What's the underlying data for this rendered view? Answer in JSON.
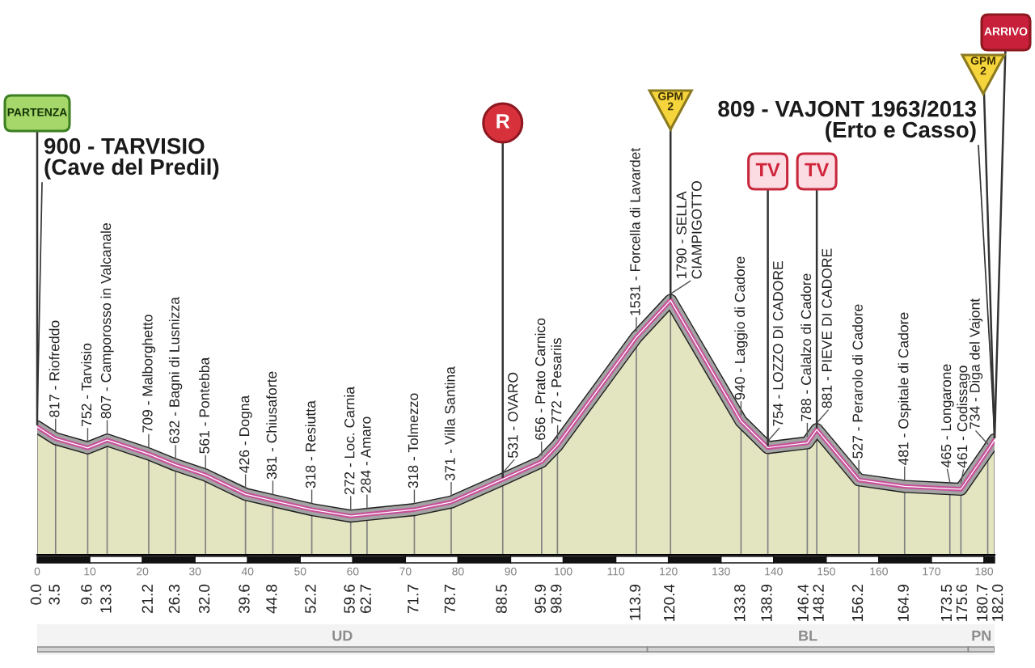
{
  "chart_data": {
    "type": "area",
    "x": [
      0,
      3.5,
      9.6,
      13.3,
      21.2,
      26.3,
      32,
      39.6,
      44.8,
      52.2,
      59.6,
      62.7,
      71.7,
      78.7,
      88.5,
      95.9,
      98.9,
      113.9,
      120.4,
      133.8,
      138.9,
      146.4,
      148.2,
      156.2,
      164.9,
      173.5,
      175.6,
      180.7,
      182
    ],
    "values": [
      900,
      817,
      752,
      807,
      709,
      632,
      561,
      426,
      381,
      318,
      272,
      284,
      318,
      371,
      531,
      656,
      772,
      1531,
      1790,
      940,
      754,
      788,
      881,
      527,
      481,
      465,
      461,
      734,
      809
    ],
    "color": "#eef0c8",
    "value_labels": [
      "900 - TARVISIO\n(Cave del Predil)",
      "817 - Riofreddo",
      "752 - Tarvisio",
      "807 - Camporosso in Valcanale",
      "709 - Malborghetto",
      "632 - Bagni di Lusnizza",
      "561 - Pontebba",
      "426 - Dogna",
      "381 - Chiusaforte",
      "318 - Resiutta",
      "272 - Loc. Carnia",
      "284 - Amaro",
      "318 - Tolmezzo",
      "371 - Villa Santina",
      "531 - OVARO",
      "656 - Prato Carnico",
      "772 - Pesariis",
      "1531 - Forcella di Lavardet",
      "1790 - SELLA\nCIAMPIGOTTO",
      "940 - Laggio di Cadore",
      "754 - LOZZO DI CADORE",
      "788 - Calalzo di Cadore",
      "881 - PIEVE DI CADORE",
      "527 - Perarolo di Cadore",
      "481 - Ospitale di Cadore",
      "465 - Longarone",
      "461 - Codissago",
      "734 - Diga del Vajont",
      "809 - VAJONT 1963/2013\n(Erto e Casso)"
    ],
    "xlim": [
      0,
      182
    ],
    "xticks": [
      {
        "value": 0,
        "label": "0.0"
      },
      3.5,
      9.6,
      13.3,
      21.2,
      26.3,
      {
        "value": 32,
        "label": "32.0"
      },
      39.6,
      44.8,
      52.2,
      59.6,
      62.7,
      71.7,
      78.7,
      88.5,
      95.9,
      98.9,
      113.9,
      120.4,
      133.8,
      138.9,
      146.4,
      148.2,
      156.2,
      164.9,
      173.5,
      175.6,
      180.7,
      {
        "value": 182,
        "label": "182.0"
      }
    ],
    "x2lim": [
      0,
      182
    ],
    "x2ticks": [
      0,
      10,
      20,
      30,
      40,
      50,
      60,
      70,
      80,
      90,
      100,
      110,
      120,
      130,
      140,
      150,
      160,
      170,
      180
    ],
    "tick_labels": "x",
    "grid": "x",
    "annotations": [
      {
        "text": "PARTENZA",
        "x": 0,
        "y": 900
      },
      {
        "text": "R",
        "x": 88.5,
        "y": 531
      },
      {
        "text": "GPM\n2",
        "x": 120.4,
        "y": 1790
      },
      {
        "text": "TV",
        "x": 138.9,
        "y": 754
      },
      {
        "text": "TV",
        "x": 148.2,
        "y": 881
      },
      {
        "text": "ARRIVO",
        "x": 182,
        "y": 809
      },
      {
        "text": "GPM\n2",
        "x": 182,
        "y": 809
      }
    ],
    "bands": [
      {
        "axis": "x",
        "from": 0,
        "to": 116,
        "label": "UD",
        "color": "#8c8c8c"
      },
      {
        "axis": "x",
        "from": 116,
        "to": 177,
        "label": "BL",
        "color": "#8c8c8c"
      },
      {
        "axis": "x",
        "from": 177,
        "to": 182,
        "label": "PN",
        "color": "#8c8c8c"
      }
    ]
  }
}
